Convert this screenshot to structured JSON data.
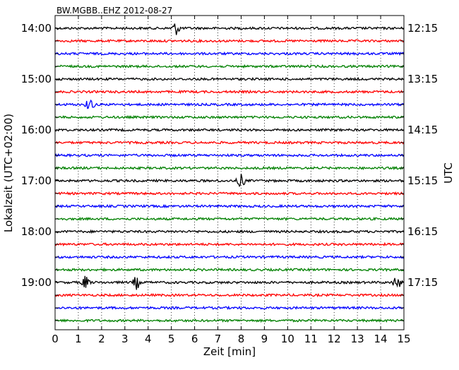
{
  "chart_data": {
    "type": "line",
    "title": "BW.MGBB..EHZ 2012-08-27",
    "xlabel": "Zeit  [min]",
    "ylabel_left": "Lokalzeit (UTC+02:00)",
    "ylabel_right": "UTC",
    "xlim": [
      0,
      15
    ],
    "x_ticks": [
      "0",
      "1",
      "2",
      "3",
      "4",
      "5",
      "6",
      "7",
      "8",
      "9",
      "10",
      "11",
      "12",
      "13",
      "14",
      "15"
    ],
    "vertical_grid": "dotted",
    "trace_minutes": 15,
    "trace_count": 24,
    "trace_colors": [
      "#000000",
      "#ff0000",
      "#0000ff",
      "#008000"
    ],
    "left_hour_labels": [
      "14:00",
      "15:00",
      "16:00",
      "17:00",
      "18:00",
      "19:00"
    ],
    "right_hour_labels": [
      "12:15",
      "13:15",
      "14:15",
      "15:15",
      "16:15",
      "17:15"
    ],
    "events": [
      {
        "trace": 0,
        "minute": 5.2,
        "label": ""
      },
      {
        "trace": 6,
        "minute": 1.5,
        "label": ""
      },
      {
        "trace": 12,
        "minute": 8.0,
        "label": ""
      },
      {
        "trace": 20,
        "minute": 1.3,
        "label": ""
      },
      {
        "trace": 20,
        "minute": 3.5,
        "label": ""
      },
      {
        "trace": 20,
        "minute": 14.7,
        "label": ""
      }
    ]
  }
}
